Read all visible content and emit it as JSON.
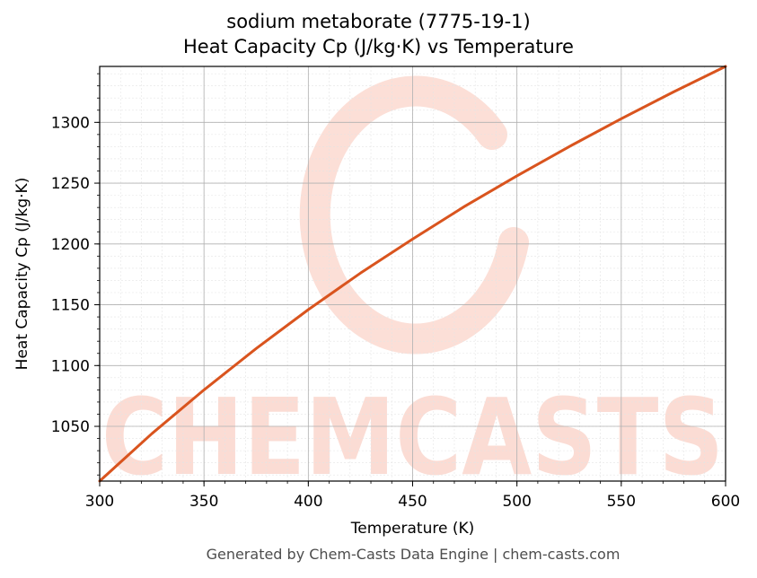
{
  "watermark": "CHEMCASTS",
  "footer": "Generated by Chem-Casts Data Engine | chem-casts.com",
  "colors": {
    "line": "#d9541e",
    "watermark": "#fbd9d0",
    "grid_major": "#b0b0b0",
    "grid_minor": "#e4e4e4"
  },
  "chart_data": {
    "type": "line",
    "title": "sodium metaborate (7775-19-1)",
    "subtitle": "Heat Capacity Cp (J/kg·K) vs Temperature",
    "xlabel": "Temperature (K)",
    "ylabel": "Heat Capacity Cp (J/kg·K)",
    "xlim": [
      300,
      600
    ],
    "ylim": [
      1005,
      1346
    ],
    "xticks": [
      300,
      350,
      400,
      450,
      500,
      550,
      600
    ],
    "yticks": [
      1050,
      1100,
      1150,
      1200,
      1250,
      1300
    ],
    "grid": true,
    "x": [
      300,
      325,
      350,
      375,
      400,
      425,
      450,
      475,
      500,
      525,
      550,
      575,
      600
    ],
    "y": [
      1005,
      1044,
      1080,
      1114,
      1146,
      1176,
      1204,
      1231,
      1256,
      1280,
      1303,
      1325,
      1346
    ]
  }
}
